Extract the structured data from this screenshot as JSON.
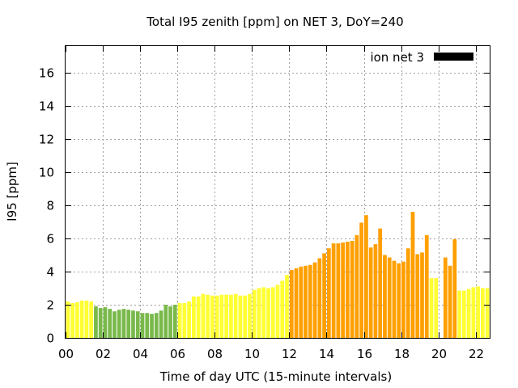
{
  "chart_data": {
    "type": "bar",
    "title": "Total I95 zenith [ppm] on NET 3, DoY=240",
    "xlabel": "Time of day UTC (15-minute intervals)",
    "ylabel": "I95 [ppm]",
    "xlim": [
      0,
      22.75
    ],
    "ylim": [
      0,
      17.6
    ],
    "x_ticks": [
      {
        "value": 0,
        "label": "00"
      },
      {
        "value": 2,
        "label": "02"
      },
      {
        "value": 4,
        "label": "04"
      },
      {
        "value": 6,
        "label": "06"
      },
      {
        "value": 8,
        "label": "08"
      },
      {
        "value": 10,
        "label": "10"
      },
      {
        "value": 12,
        "label": "12"
      },
      {
        "value": 14,
        "label": "14"
      },
      {
        "value": 16,
        "label": "16"
      },
      {
        "value": 18,
        "label": "18"
      },
      {
        "value": 20,
        "label": "20"
      },
      {
        "value": 22,
        "label": "22"
      }
    ],
    "y_ticks": [
      {
        "value": 0,
        "label": "0"
      },
      {
        "value": 2,
        "label": "2"
      },
      {
        "value": 4,
        "label": "4"
      },
      {
        "value": 6,
        "label": "6"
      },
      {
        "value": 8,
        "label": "8"
      },
      {
        "value": 10,
        "label": "10"
      },
      {
        "value": 12,
        "label": "12"
      },
      {
        "value": 14,
        "label": "14"
      },
      {
        "value": 16,
        "label": "16"
      }
    ],
    "grid": true,
    "legend": {
      "placement": "top-right",
      "label": "ion net 3",
      "color": "#000000"
    },
    "interval_hours": 0.25,
    "level_colors": {
      "1": "#79b94b",
      "2": "#ffff33",
      "3": "#ff9f00"
    },
    "values": [
      2.2,
      2.1,
      2.15,
      2.25,
      2.25,
      2.2,
      1.9,
      1.8,
      1.85,
      1.75,
      1.6,
      1.7,
      1.75,
      1.7,
      1.65,
      1.6,
      1.5,
      1.5,
      1.45,
      1.5,
      1.65,
      2.0,
      1.9,
      2.0,
      2.1,
      2.1,
      2.2,
      2.5,
      2.5,
      2.65,
      2.6,
      2.55,
      2.55,
      2.6,
      2.6,
      2.6,
      2.65,
      2.55,
      2.55,
      2.65,
      2.9,
      3.0,
      3.05,
      3.0,
      3.05,
      3.2,
      3.45,
      3.8,
      4.1,
      4.2,
      4.3,
      4.35,
      4.4,
      4.55,
      4.8,
      5.1,
      5.4,
      5.7,
      5.7,
      5.75,
      5.8,
      5.85,
      6.2,
      6.95,
      7.4,
      5.45,
      5.65,
      6.6,
      5.0,
      4.85,
      4.65,
      4.5,
      4.6,
      5.4,
      7.6,
      5.05,
      5.15,
      6.2,
      3.6,
      3.6,
      0,
      4.85,
      4.35,
      5.95,
      2.85,
      2.85,
      2.95,
      3.05,
      3.1,
      3.0,
      3.0
    ],
    "levels": [
      2,
      2,
      2,
      2,
      2,
      2,
      1,
      1,
      1,
      1,
      1,
      1,
      1,
      1,
      1,
      1,
      1,
      1,
      1,
      1,
      1,
      1,
      1,
      1,
      2,
      2,
      2,
      2,
      2,
      2,
      2,
      2,
      2,
      2,
      2,
      2,
      2,
      2,
      2,
      2,
      2,
      2,
      2,
      2,
      2,
      2,
      2,
      2,
      3,
      3,
      3,
      3,
      3,
      3,
      3,
      3,
      3,
      3,
      3,
      3,
      3,
      3,
      3,
      3,
      3,
      3,
      3,
      3,
      3,
      3,
      3,
      3,
      3,
      3,
      3,
      3,
      3,
      3,
      2,
      2,
      2,
      3,
      3,
      3,
      2,
      2,
      2,
      2,
      2,
      2,
      2
    ]
  }
}
